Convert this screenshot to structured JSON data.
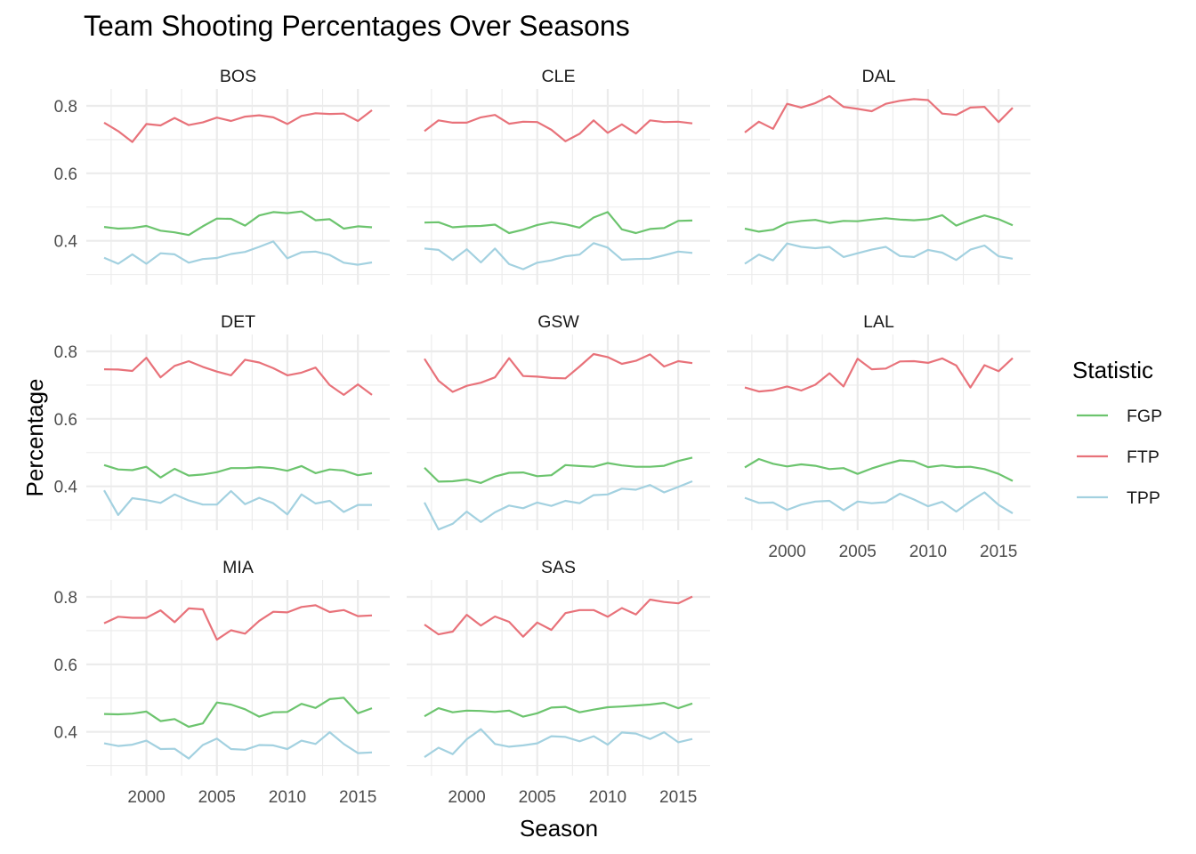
{
  "chart_data": {
    "type": "line",
    "title": "Team Shooting Percentages Over Seasons",
    "xlabel": "Season",
    "ylabel": "Percentage",
    "xlim": [
      1997,
      2016
    ],
    "ylim": [
      0.27,
      0.85
    ],
    "x_ticks": [
      2000,
      2005,
      2010,
      2015
    ],
    "y_ticks": [
      0.4,
      0.6,
      0.8
    ],
    "grid": true,
    "legend": {
      "title": "Statistic",
      "placement": "right",
      "entries": [
        {
          "name": "FGP",
          "color": "#6cc46e"
        },
        {
          "name": "FTP",
          "color": "#e8727a"
        },
        {
          "name": "TPP",
          "color": "#a3d1e0"
        }
      ]
    },
    "x": [
      1997,
      1998,
      1999,
      2000,
      2001,
      2002,
      2003,
      2004,
      2005,
      2006,
      2007,
      2008,
      2009,
      2010,
      2011,
      2012,
      2013,
      2014,
      2015,
      2016
    ],
    "panels": [
      {
        "team": "BOS",
        "FGP": [
          0.441,
          0.436,
          0.438,
          0.444,
          0.43,
          0.425,
          0.417,
          0.443,
          0.466,
          0.465,
          0.445,
          0.475,
          0.485,
          0.482,
          0.487,
          0.461,
          0.464,
          0.436,
          0.443,
          0.44
        ],
        "FTP": [
          0.75,
          0.725,
          0.693,
          0.746,
          0.742,
          0.764,
          0.743,
          0.751,
          0.765,
          0.755,
          0.768,
          0.772,
          0.766,
          0.746,
          0.77,
          0.778,
          0.776,
          0.777,
          0.755,
          0.787
        ],
        "TPP": [
          0.35,
          0.332,
          0.36,
          0.332,
          0.363,
          0.36,
          0.335,
          0.346,
          0.349,
          0.361,
          0.367,
          0.382,
          0.398,
          0.348,
          0.366,
          0.368,
          0.358,
          0.335,
          0.329,
          0.336
        ]
      },
      {
        "team": "CLE",
        "FGP": [
          0.454,
          0.455,
          0.44,
          0.443,
          0.444,
          0.448,
          0.423,
          0.433,
          0.447,
          0.455,
          0.449,
          0.439,
          0.469,
          0.485,
          0.434,
          0.423,
          0.435,
          0.438,
          0.459,
          0.46
        ],
        "FTP": [
          0.725,
          0.757,
          0.75,
          0.75,
          0.766,
          0.773,
          0.747,
          0.753,
          0.752,
          0.729,
          0.695,
          0.717,
          0.757,
          0.72,
          0.745,
          0.718,
          0.757,
          0.752,
          0.753,
          0.748
        ],
        "TPP": [
          0.377,
          0.373,
          0.343,
          0.375,
          0.336,
          0.377,
          0.331,
          0.316,
          0.335,
          0.342,
          0.354,
          0.359,
          0.393,
          0.38,
          0.344,
          0.346,
          0.347,
          0.357,
          0.368,
          0.364
        ]
      },
      {
        "team": "DAL",
        "FGP": [
          0.436,
          0.427,
          0.433,
          0.453,
          0.459,
          0.462,
          0.453,
          0.459,
          0.458,
          0.463,
          0.467,
          0.463,
          0.461,
          0.464,
          0.476,
          0.445,
          0.462,
          0.475,
          0.464,
          0.446
        ],
        "FTP": [
          0.721,
          0.753,
          0.732,
          0.806,
          0.795,
          0.808,
          0.829,
          0.797,
          0.791,
          0.784,
          0.806,
          0.815,
          0.82,
          0.817,
          0.777,
          0.773,
          0.795,
          0.797,
          0.752,
          0.794
        ],
        "TPP": [
          0.332,
          0.359,
          0.342,
          0.392,
          0.382,
          0.378,
          0.382,
          0.352,
          0.363,
          0.374,
          0.382,
          0.355,
          0.352,
          0.373,
          0.365,
          0.343,
          0.374,
          0.386,
          0.354,
          0.347
        ]
      },
      {
        "team": "DET",
        "FGP": [
          0.463,
          0.45,
          0.448,
          0.458,
          0.426,
          0.452,
          0.432,
          0.435,
          0.442,
          0.454,
          0.454,
          0.457,
          0.454,
          0.446,
          0.46,
          0.439,
          0.45,
          0.447,
          0.433,
          0.439
        ],
        "FTP": [
          0.747,
          0.746,
          0.742,
          0.781,
          0.723,
          0.757,
          0.771,
          0.754,
          0.74,
          0.729,
          0.775,
          0.767,
          0.75,
          0.729,
          0.737,
          0.752,
          0.7,
          0.671,
          0.702,
          0.671
        ],
        "TPP": [
          0.388,
          0.315,
          0.365,
          0.359,
          0.351,
          0.376,
          0.358,
          0.346,
          0.346,
          0.386,
          0.347,
          0.366,
          0.35,
          0.317,
          0.376,
          0.349,
          0.357,
          0.324,
          0.345,
          0.345
        ]
      },
      {
        "team": "GSW",
        "FGP": [
          0.455,
          0.414,
          0.415,
          0.42,
          0.41,
          0.429,
          0.44,
          0.441,
          0.43,
          0.433,
          0.463,
          0.46,
          0.458,
          0.469,
          0.462,
          0.458,
          0.458,
          0.461,
          0.475,
          0.485
        ],
        "FTP": [
          0.778,
          0.713,
          0.68,
          0.698,
          0.707,
          0.723,
          0.78,
          0.727,
          0.725,
          0.721,
          0.72,
          0.755,
          0.792,
          0.783,
          0.763,
          0.772,
          0.791,
          0.755,
          0.771,
          0.765
        ],
        "TPP": [
          0.352,
          0.272,
          0.289,
          0.325,
          0.294,
          0.323,
          0.343,
          0.335,
          0.352,
          0.342,
          0.357,
          0.35,
          0.374,
          0.376,
          0.393,
          0.39,
          0.404,
          0.382,
          0.398,
          0.415
        ]
      },
      {
        "team": "LAL",
        "FGP": [
          0.456,
          0.481,
          0.467,
          0.459,
          0.465,
          0.461,
          0.451,
          0.454,
          0.437,
          0.453,
          0.466,
          0.477,
          0.474,
          0.457,
          0.462,
          0.457,
          0.458,
          0.451,
          0.437,
          0.416
        ],
        "FTP": [
          0.693,
          0.681,
          0.685,
          0.696,
          0.684,
          0.701,
          0.735,
          0.696,
          0.778,
          0.747,
          0.749,
          0.77,
          0.771,
          0.766,
          0.779,
          0.758,
          0.693,
          0.759,
          0.741,
          0.78
        ],
        "TPP": [
          0.366,
          0.351,
          0.352,
          0.33,
          0.346,
          0.355,
          0.357,
          0.329,
          0.355,
          0.35,
          0.353,
          0.378,
          0.361,
          0.341,
          0.354,
          0.325,
          0.356,
          0.382,
          0.345,
          0.32
        ]
      },
      {
        "team": "MIA",
        "FGP": [
          0.453,
          0.452,
          0.454,
          0.46,
          0.432,
          0.438,
          0.415,
          0.425,
          0.487,
          0.481,
          0.467,
          0.445,
          0.458,
          0.459,
          0.483,
          0.471,
          0.497,
          0.501,
          0.455,
          0.47
        ],
        "FTP": [
          0.722,
          0.741,
          0.738,
          0.738,
          0.76,
          0.725,
          0.766,
          0.763,
          0.673,
          0.701,
          0.691,
          0.729,
          0.756,
          0.754,
          0.77,
          0.775,
          0.755,
          0.761,
          0.743,
          0.745
        ],
        "TPP": [
          0.366,
          0.358,
          0.362,
          0.374,
          0.349,
          0.35,
          0.321,
          0.361,
          0.38,
          0.349,
          0.347,
          0.361,
          0.36,
          0.349,
          0.374,
          0.364,
          0.399,
          0.364,
          0.337,
          0.339
        ]
      },
      {
        "team": "SAS",
        "FGP": [
          0.446,
          0.47,
          0.458,
          0.463,
          0.462,
          0.459,
          0.463,
          0.445,
          0.455,
          0.472,
          0.474,
          0.458,
          0.466,
          0.473,
          0.475,
          0.478,
          0.481,
          0.486,
          0.47,
          0.484
        ],
        "FTP": [
          0.718,
          0.689,
          0.697,
          0.747,
          0.715,
          0.742,
          0.726,
          0.682,
          0.724,
          0.702,
          0.752,
          0.761,
          0.761,
          0.741,
          0.767,
          0.748,
          0.792,
          0.785,
          0.781,
          0.801
        ],
        "TPP": [
          0.325,
          0.353,
          0.334,
          0.378,
          0.408,
          0.364,
          0.356,
          0.36,
          0.366,
          0.387,
          0.385,
          0.372,
          0.387,
          0.362,
          0.398,
          0.395,
          0.379,
          0.399,
          0.369,
          0.379
        ]
      }
    ]
  }
}
